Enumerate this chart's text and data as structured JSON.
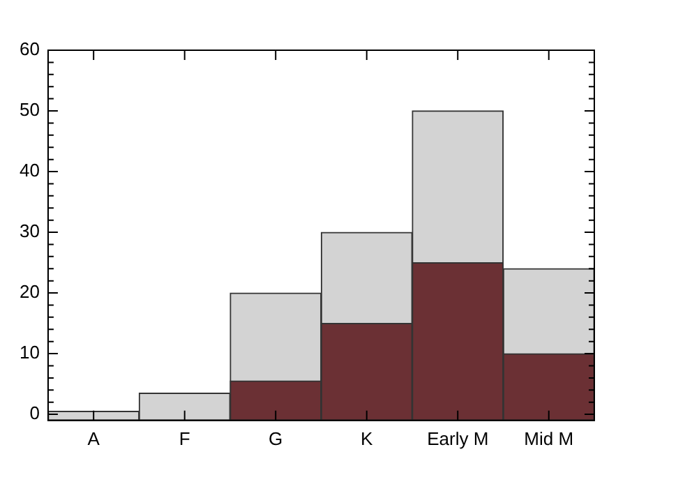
{
  "chart_data": {
    "type": "bar",
    "categories": [
      "A",
      "F",
      "G",
      "K",
      "Early M",
      "Mid M"
    ],
    "series": [
      {
        "color": "#d3d3d3",
        "values": [
          1.5,
          4.5,
          21,
          31,
          51,
          25
        ],
        "base": [
          -1,
          -1,
          -1,
          -1,
          -1,
          -1
        ]
      },
      {
        "color": "#6b3034",
        "values": [
          null,
          null,
          6.5,
          16,
          26,
          11
        ],
        "base": [
          null,
          null,
          -1,
          -1,
          -1,
          -1
        ]
      }
    ],
    "ylim": [
      -1,
      60
    ],
    "yticks": [
      0,
      10,
      20,
      30,
      40,
      50,
      60
    ],
    "grid": false,
    "legend": false
  }
}
